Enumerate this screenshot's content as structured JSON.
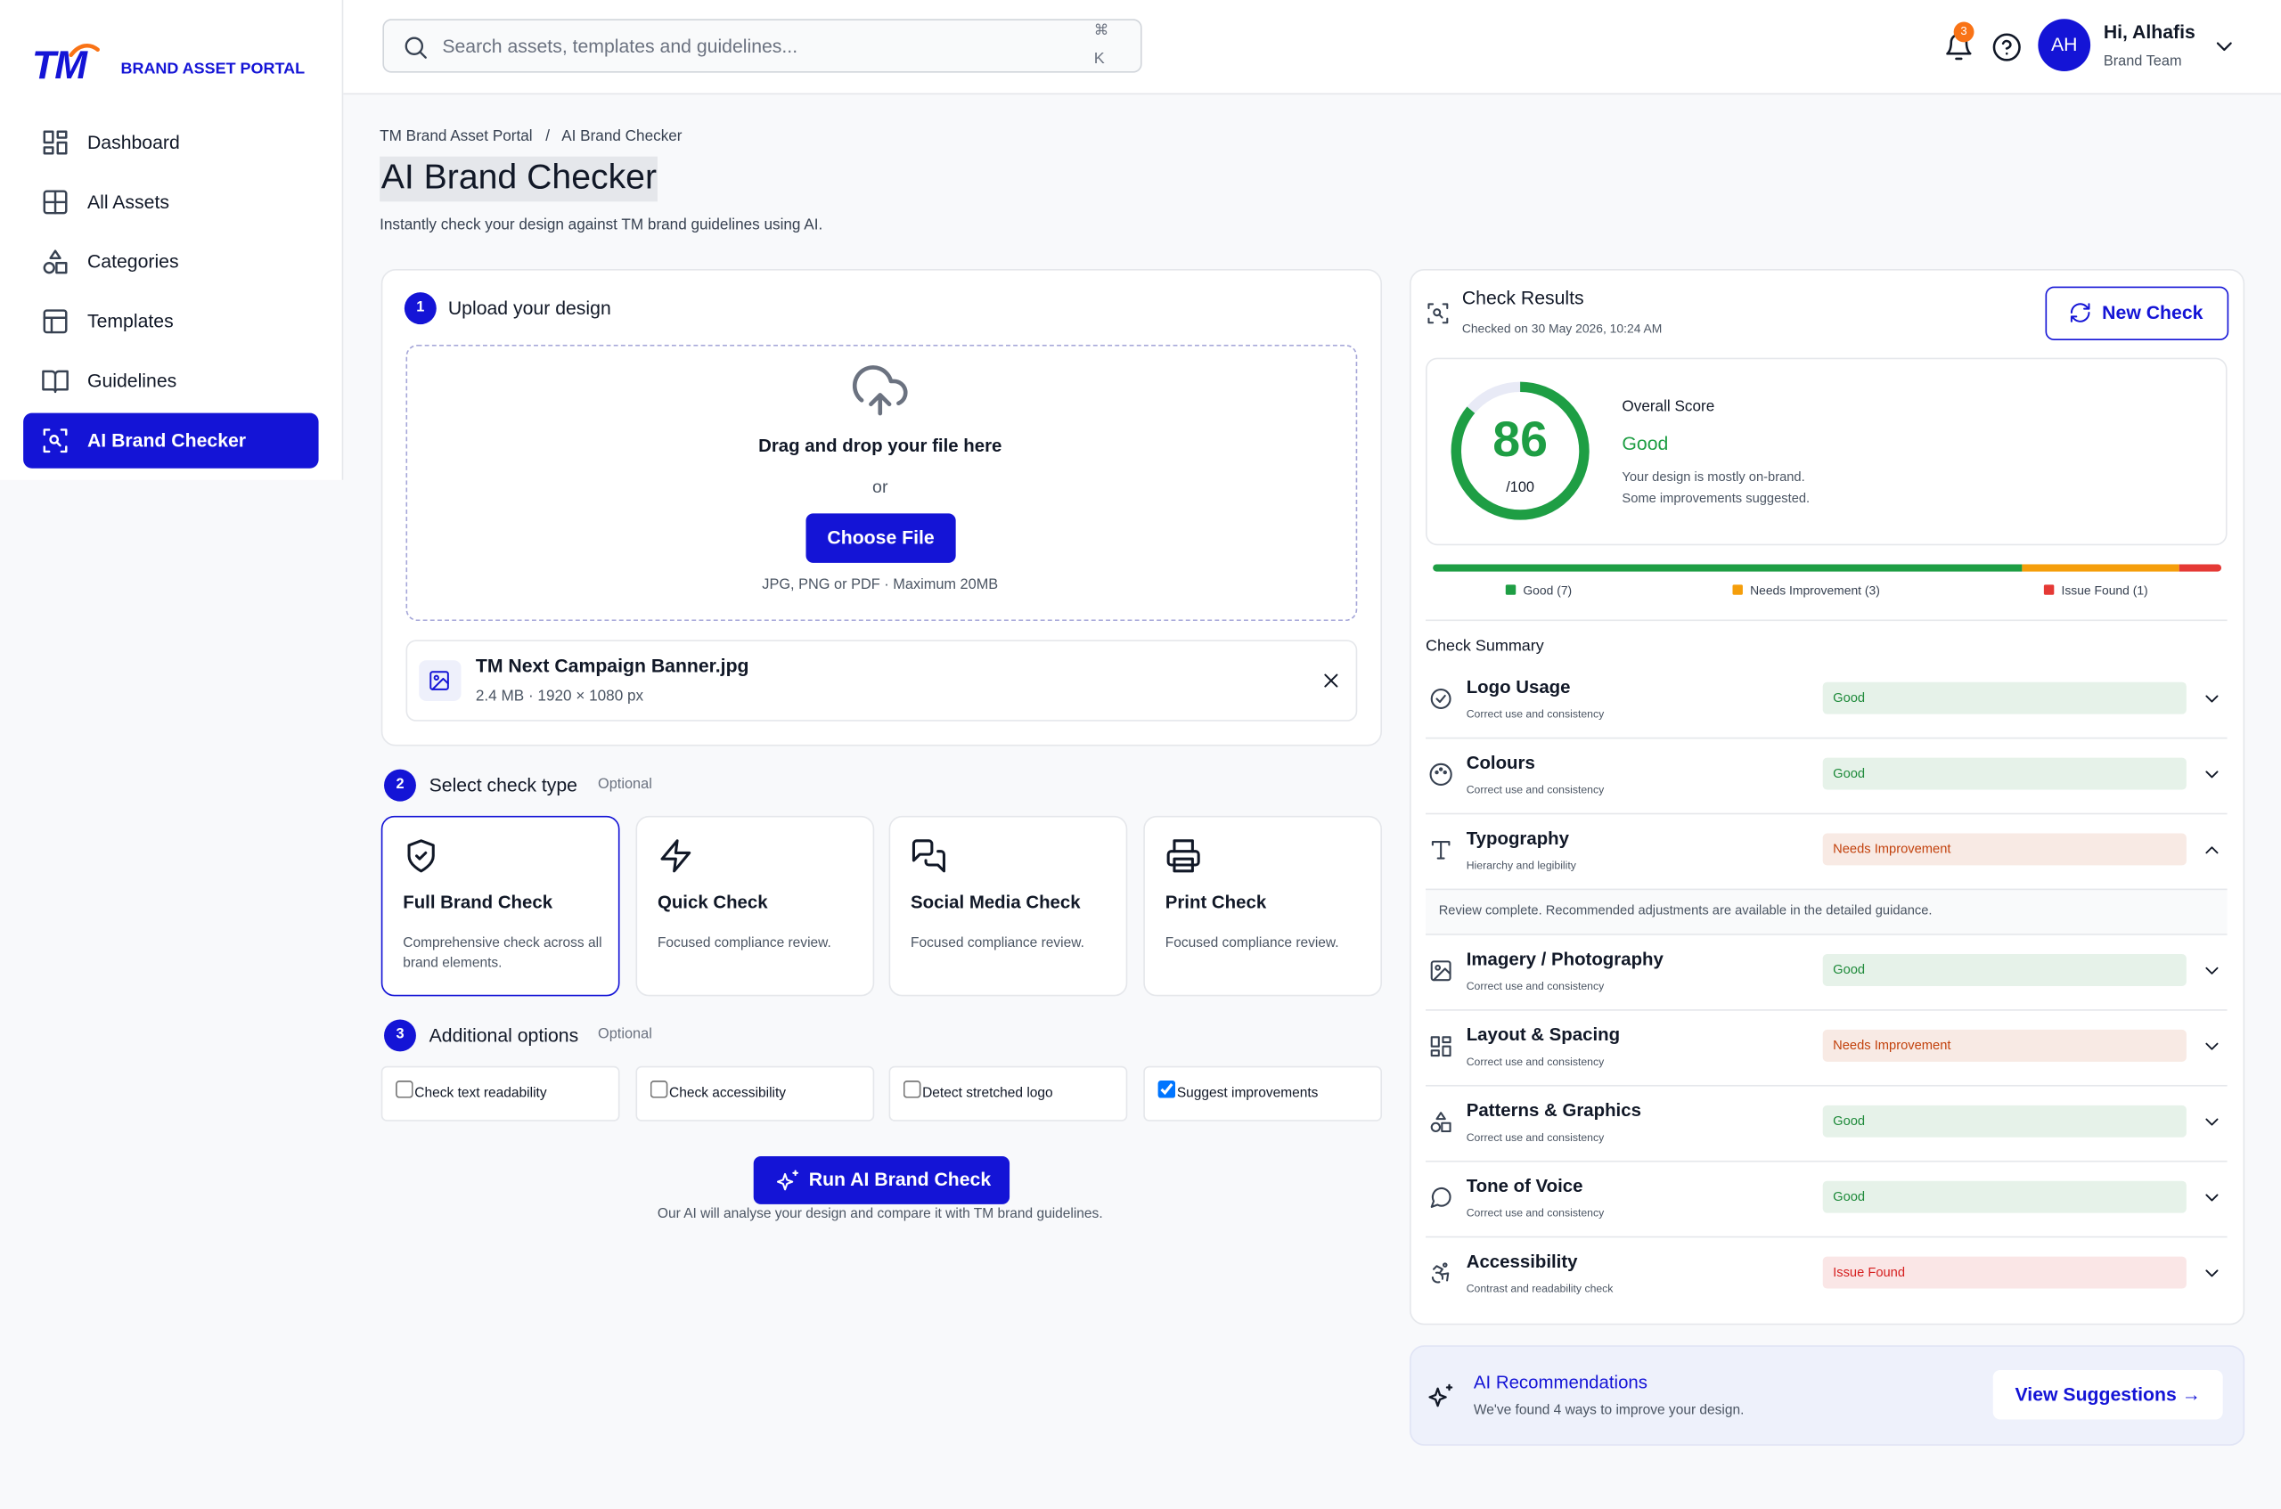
{
  "brand": {
    "logo": "TM",
    "name": "BRAND ASSET PORTAL"
  },
  "nav": [
    {
      "label": "Dashboard",
      "active": false
    },
    {
      "label": "All Assets",
      "active": false
    },
    {
      "label": "Categories",
      "active": false
    },
    {
      "label": "Templates",
      "active": false
    },
    {
      "label": "Guidelines",
      "active": false
    },
    {
      "label": "AI Brand Checker",
      "active": true
    }
  ],
  "search": {
    "placeholder": "Search assets, templates and guidelines...",
    "shortcut": [
      "⌘",
      "K"
    ]
  },
  "notifications": 3,
  "user": {
    "initials": "AH",
    "greeting": "Hi, Alhafis",
    "team": "Brand Team"
  },
  "breadcrumb": {
    "items": [
      "TM Brand Asset Portal",
      "AI Brand Checker"
    ],
    "separator": "/"
  },
  "page": {
    "title": "AI Brand Checker",
    "subtitle": "Instantly check your design against TM brand guidelines using AI."
  },
  "upload": {
    "step": 1,
    "title": "Upload your design",
    "drop": "Drag and drop your file here",
    "or": "or",
    "button": "Choose File",
    "hint": "JPG, PNG or PDF · Maximum 20MB",
    "file": {
      "name": "TM Next Campaign Banner.jpg",
      "meta": "2.4 MB · 1920 × 1080 px"
    }
  },
  "check_type": {
    "step": 2,
    "title": "Select check type",
    "optional": "Optional",
    "options": [
      {
        "title": "Full Brand Check",
        "desc": "Comprehensive check across all brand elements.",
        "selected": true
      },
      {
        "title": "Quick Check",
        "desc": "Focused compliance review.",
        "selected": false
      },
      {
        "title": "Social Media Check",
        "desc": "Focused compliance review.",
        "selected": false
      },
      {
        "title": "Print Check",
        "desc": "Focused compliance review.",
        "selected": false
      }
    ]
  },
  "options": {
    "step": 3,
    "title": "Additional options",
    "optional": "Optional",
    "items": [
      {
        "label": "Check text readability",
        "checked": false
      },
      {
        "label": "Check accessibility",
        "checked": false
      },
      {
        "label": "Detect stretched logo",
        "checked": false
      },
      {
        "label": "Suggest improvements",
        "checked": true
      }
    ]
  },
  "run": {
    "button": "Run AI Brand Check",
    "note": "Our AI will analyse your design and compare it with TM brand guidelines."
  },
  "results": {
    "title": "Check Results",
    "date": "Checked on 30 May 2026, 10:24 AM",
    "new_check": "New Check",
    "score": 86,
    "score_scale": {
      "value": 100,
      "label": "/100"
    },
    "score_title": "Overall Score",
    "rating": "Good",
    "rating_color": "#1e9e44",
    "desc": [
      "Your design is mostly on-brand.",
      "Some improvements suggested."
    ],
    "legend": [
      {
        "label": "Good (7)",
        "color": "#1e9e44"
      },
      {
        "label": "Needs Improvement (3)",
        "color": "#f59e0b"
      },
      {
        "label": "Issue Found (1)",
        "color": "#e53935"
      }
    ],
    "summary_title": "Check Summary",
    "items": [
      {
        "name": "Logo Usage",
        "sub": "Correct use and consistency",
        "status": "Good",
        "color": "#1e8a3a"
      },
      {
        "name": "Colours",
        "sub": "Correct use and consistency",
        "status": "Good",
        "color": "#1e8a3a"
      },
      {
        "name": "Typography",
        "sub": "Hierarchy and legibility",
        "status": "Needs Improvement",
        "color": "#c2410c",
        "detail": "Review complete. Recommended adjustments are available in the detailed guidance."
      },
      {
        "name": "Imagery / Photography",
        "sub": "Correct use and consistency",
        "status": "Good",
        "color": "#1e8a3a"
      },
      {
        "name": "Layout & Spacing",
        "sub": "Correct use and consistency",
        "status": "Needs Improvement",
        "color": "#c2410c"
      },
      {
        "name": "Patterns & Graphics",
        "sub": "Correct use and consistency",
        "status": "Good",
        "color": "#1e8a3a"
      },
      {
        "name": "Tone of Voice",
        "sub": "Correct use and consistency",
        "status": "Good",
        "color": "#1e8a3a"
      },
      {
        "name": "Accessibility",
        "sub": "Contrast and readability check",
        "status": "Issue Found",
        "color": "#d61f1f"
      }
    ]
  },
  "recommendations": {
    "title": "AI Recommendations",
    "text": "We've found 4 ways to improve your design.",
    "button": "View Suggestions →"
  }
}
